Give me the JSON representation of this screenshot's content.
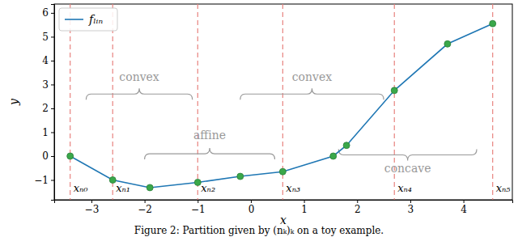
{
  "chart_data": {
    "type": "line",
    "caption": "Figure 2: Partition given by (nₖ)ₖ on a toy example.",
    "x_label": "x",
    "y_label": "y",
    "x": [
      -3.4,
      -2.6,
      -1.9,
      -1.0,
      -0.2,
      0.6,
      1.55,
      1.8,
      2.7,
      3.7,
      4.55
    ],
    "series": [
      {
        "name": "fₗᵢₙ",
        "color": "#1f77b4",
        "marker": "circle",
        "values": [
          0.0,
          -1.0,
          -1.32,
          -1.1,
          -0.85,
          -0.65,
          0.0,
          0.45,
          2.75,
          4.7,
          5.55
        ]
      }
    ],
    "xlim": [
      -3.7,
      4.92
    ],
    "ylim": [
      -1.83,
      6.37
    ],
    "xticks": [
      {
        "value": -3,
        "label": "−3"
      },
      {
        "value": -2,
        "label": "−2"
      },
      {
        "value": -1,
        "label": "−1"
      },
      0,
      1,
      2,
      3,
      4
    ],
    "yticks": [
      {
        "value": -1,
        "label": "−1"
      },
      0,
      1,
      2,
      3,
      4,
      5,
      6
    ],
    "grid": false,
    "legend": "upper left",
    "vlines": [
      {
        "x": -3.4,
        "label": "xₙ₀"
      },
      {
        "x": -2.6,
        "label": "xₙ₁"
      },
      {
        "x": -1.0,
        "label": "xₙ₂"
      },
      {
        "x": 0.6,
        "label": "xₙ₃"
      },
      {
        "x": 2.7,
        "label": "xₙ₄"
      },
      {
        "x": 4.55,
        "label": "xₙ₅"
      }
    ],
    "annotations": [
      {
        "text": "convex",
        "x": [
          -3.1,
          -1.1
        ],
        "y": 2.6,
        "label_y": 3.3
      },
      {
        "text": "affine",
        "x": [
          -2.0,
          0.45
        ],
        "y": 0.1,
        "label_y": 0.85
      },
      {
        "text": "convex",
        "x": [
          -0.2,
          2.5
        ],
        "y": 2.6,
        "label_y": 3.3
      },
      {
        "text": "concave",
        "x": [
          1.65,
          4.25
        ],
        "y": 0.05,
        "label_y": -0.55
      }
    ]
  }
}
